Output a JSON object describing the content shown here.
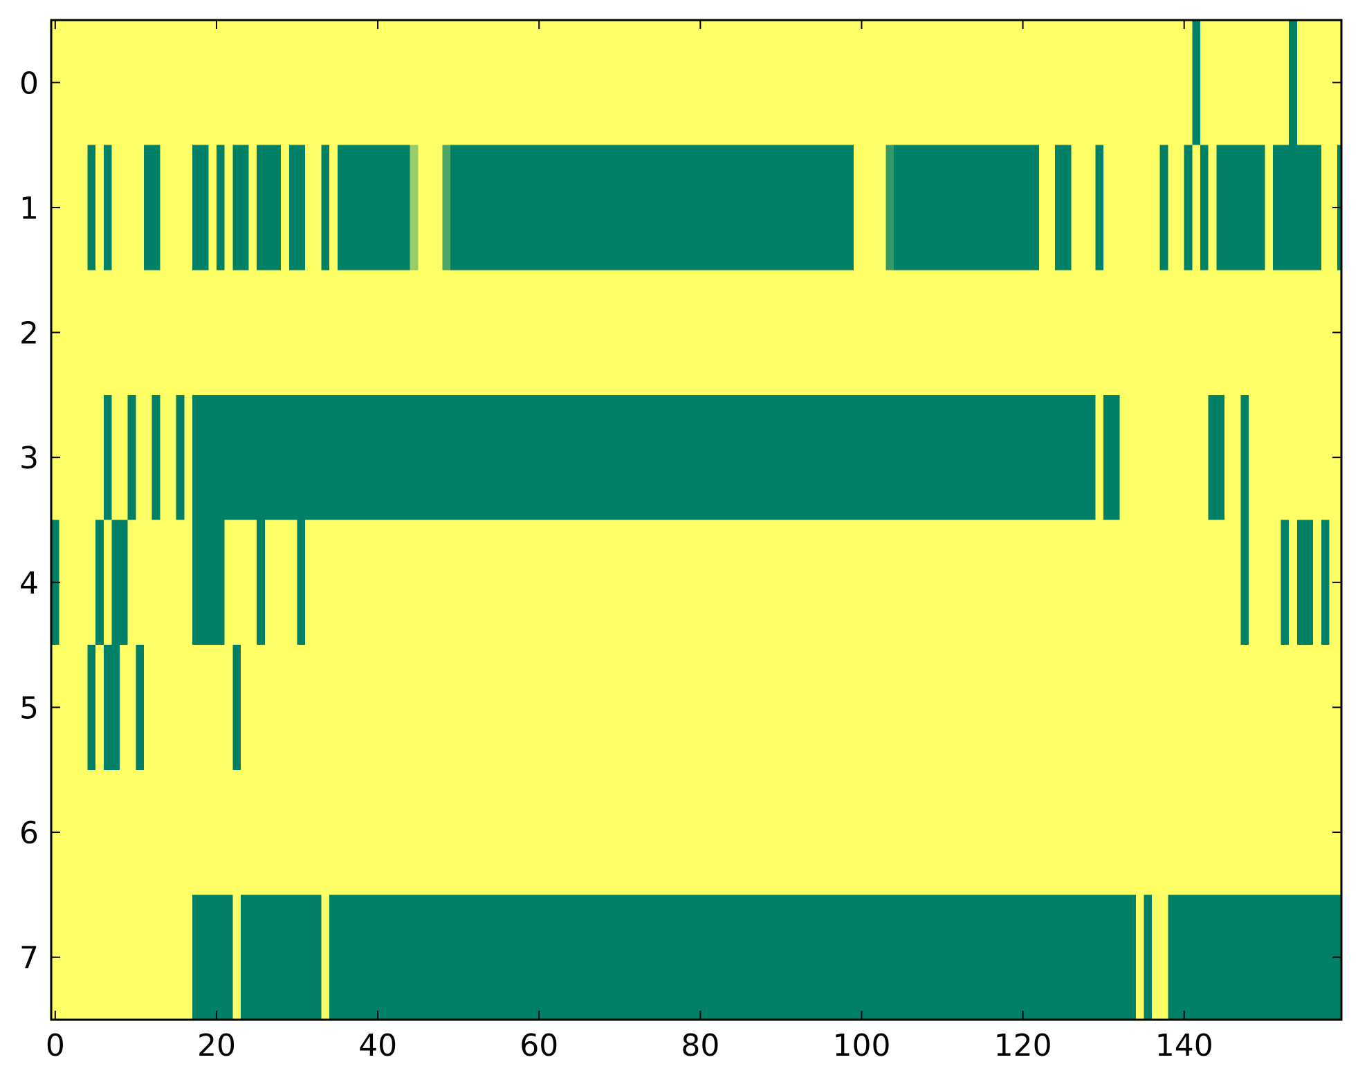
{
  "chart_data": {
    "type": "heatmap",
    "title": "",
    "xlabel": "",
    "ylabel": "",
    "xlim": [
      -0.5,
      159.5
    ],
    "ylim": [
      7.5,
      -0.5
    ],
    "x_ticks": [
      "0",
      "20",
      "40",
      "60",
      "80",
      "100",
      "120",
      "140"
    ],
    "y_ticks": [
      "0",
      "1",
      "2",
      "3",
      "4",
      "5",
      "6",
      "7"
    ],
    "colormap": "summer",
    "colors": {
      "low": "#008066",
      "high": "#ffff66",
      "mid_low": "#339966",
      "mid_light": "#99cc66"
    },
    "background_value": 1,
    "rows": [
      {
        "row": 0,
        "low_segments": [
          [
            141,
            142
          ],
          [
            153,
            154
          ]
        ]
      },
      {
        "row": 1,
        "low_segments": [
          [
            4,
            5
          ],
          [
            6,
            7
          ],
          [
            11,
            13
          ],
          [
            17,
            19
          ],
          [
            20,
            21
          ],
          [
            22,
            24
          ],
          [
            25,
            28
          ],
          [
            29,
            31
          ],
          [
            33,
            34
          ],
          [
            35,
            44
          ],
          [
            48,
            49,
            0.3
          ],
          [
            49,
            99
          ],
          [
            103,
            104,
            0.2
          ],
          [
            104,
            122
          ],
          [
            124,
            126
          ],
          [
            129,
            130
          ],
          [
            137,
            138
          ],
          [
            140,
            141
          ],
          [
            142,
            143
          ],
          [
            144,
            150
          ],
          [
            151,
            157
          ],
          [
            159,
            160
          ]
        ],
        "partial_segments": [
          [
            44,
            45,
            0.6
          ]
        ]
      },
      {
        "row": 2,
        "low_segments": []
      },
      {
        "row": 3,
        "low_segments": [
          [
            6,
            7
          ],
          [
            9,
            10
          ],
          [
            12,
            13
          ],
          [
            15,
            16
          ],
          [
            17,
            129
          ],
          [
            130,
            132
          ],
          [
            143,
            145
          ],
          [
            147,
            148
          ]
        ]
      },
      {
        "row": 4,
        "low_segments": [
          [
            -0.5,
            0.5
          ],
          [
            5,
            6
          ],
          [
            7,
            9
          ],
          [
            17,
            21
          ],
          [
            25,
            26
          ],
          [
            30,
            31
          ],
          [
            147,
            148
          ],
          [
            152,
            153
          ],
          [
            154,
            156
          ],
          [
            157,
            158
          ]
        ]
      },
      {
        "row": 5,
        "low_segments": [
          [
            4,
            5
          ],
          [
            6,
            8
          ],
          [
            10,
            11
          ],
          [
            22,
            23
          ]
        ]
      },
      {
        "row": 6,
        "low_segments": []
      },
      {
        "row": 7,
        "low_segments": [
          [
            17,
            22
          ],
          [
            23,
            33
          ],
          [
            34,
            134
          ],
          [
            135,
            136
          ],
          [
            138,
            160
          ]
        ]
      }
    ]
  }
}
